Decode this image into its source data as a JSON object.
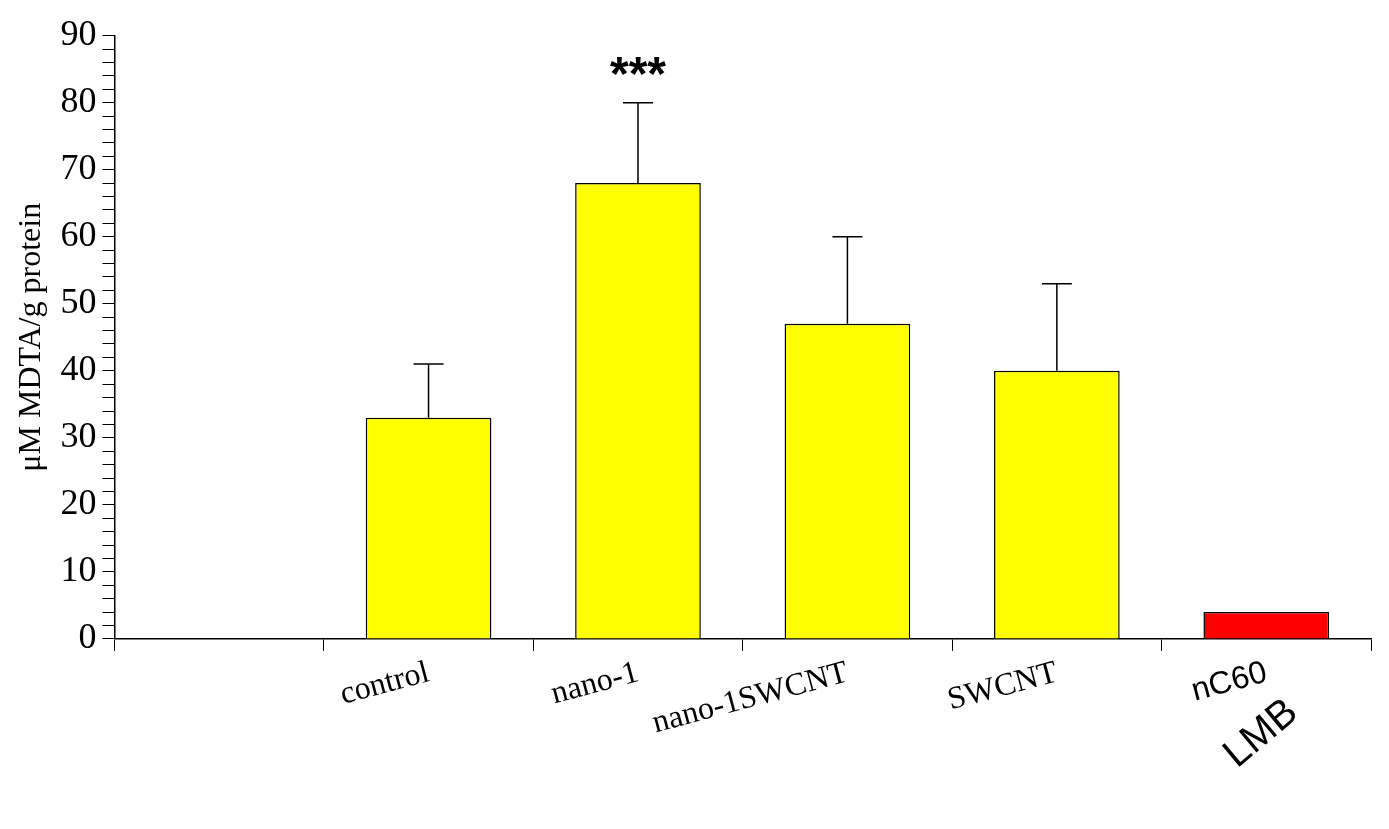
{
  "chart_data": {
    "type": "bar",
    "ylabel": "μM MDTA/g protein",
    "categories": [
      null,
      "control",
      "nano-1",
      "nano-1SWCNT",
      "SWCNT",
      "nC60"
    ],
    "values": [
      null,
      33,
      68,
      47,
      40,
      4
    ],
    "colors": [
      "#ffff00",
      "#ffff00",
      "#ffff00",
      "#ffff00",
      "#ffff00",
      "#ff0000"
    ],
    "errors": [
      null,
      [
        33,
        41
      ],
      [
        68,
        80
      ],
      [
        47,
        60
      ],
      [
        40,
        53
      ],
      null
    ],
    "ylim": [
      0,
      90
    ],
    "yticks": [
      0,
      {
        "value": 2,
        "label": null
      },
      {
        "value": 4,
        "label": null
      },
      {
        "value": 6,
        "label": null
      },
      {
        "value": 8,
        "label": null
      },
      10,
      {
        "value": 12,
        "label": null
      },
      {
        "value": 14,
        "label": null
      },
      {
        "value": 16,
        "label": null
      },
      {
        "value": 18,
        "label": null
      },
      20,
      {
        "value": 22,
        "label": null
      },
      {
        "value": 24,
        "label": null
      },
      {
        "value": 26,
        "label": null
      },
      {
        "value": 28,
        "label": null
      },
      30,
      {
        "value": 32,
        "label": null
      },
      {
        "value": 34,
        "label": null
      },
      {
        "value": 36,
        "label": null
      },
      {
        "value": 38,
        "label": null
      },
      40,
      {
        "value": 42,
        "label": null
      },
      {
        "value": 44,
        "label": null
      },
      {
        "value": 46,
        "label": null
      },
      {
        "value": 48,
        "label": null
      },
      50,
      {
        "value": 52,
        "label": null
      },
      {
        "value": 54,
        "label": null
      },
      {
        "value": 56,
        "label": null
      },
      {
        "value": 58,
        "label": null
      },
      60,
      {
        "value": 62,
        "label": null
      },
      {
        "value": 64,
        "label": null
      },
      {
        "value": 66,
        "label": null
      },
      {
        "value": 68,
        "label": null
      },
      70,
      {
        "value": 72,
        "label": null
      },
      {
        "value": 74,
        "label": null
      },
      {
        "value": 76,
        "label": null
      },
      {
        "value": 78,
        "label": null
      },
      80,
      {
        "value": 82,
        "label": null
      },
      {
        "value": 84,
        "label": null
      },
      {
        "value": 86,
        "label": null
      },
      {
        "value": 88,
        "label": null
      },
      90
    ],
    "annotations": [
      "***",
      "LMB"
    ],
    "grid": false,
    "legend": false
  }
}
